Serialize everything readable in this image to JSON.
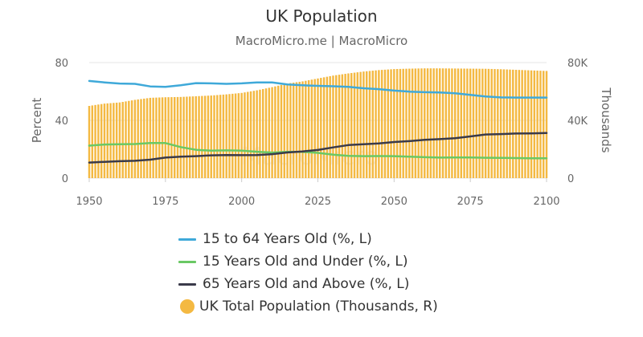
{
  "chart_data": {
    "type": "bar",
    "title": "UK Population",
    "subtitle": "MacroMicro.me | MacroMicro",
    "ylabel_left": "Percent",
    "ylabel_right": "Thousands",
    "xlim": [
      1950,
      2100
    ],
    "x_ticks": [
      "1950",
      "1975",
      "2000",
      "2025",
      "2050",
      "2075",
      "2100"
    ],
    "ylim_left": [
      0,
      80
    ],
    "y_ticks_left": [
      "0",
      "40",
      "80"
    ],
    "ylim_right": [
      0,
      80000
    ],
    "y_ticks_right": [
      "0",
      "40K",
      "80K"
    ],
    "grid": true,
    "legend_position": "bottom",
    "x": [
      1950,
      1955,
      1960,
      1965,
      1970,
      1975,
      1980,
      1985,
      1990,
      1995,
      2000,
      2005,
      2010,
      2015,
      2020,
      2025,
      2030,
      2035,
      2040,
      2045,
      2050,
      2055,
      2060,
      2065,
      2070,
      2075,
      2080,
      2085,
      2090,
      2095,
      2100
    ],
    "series": [
      {
        "name": "15 to 64 Years Old (%, L)",
        "type": "line",
        "axis": "left",
        "color": "#3fa9d9",
        "values": [
          67.3,
          66.3,
          65.5,
          65.3,
          63.5,
          63.2,
          64.3,
          65.8,
          65.6,
          65.3,
          65.6,
          66.3,
          66.3,
          64.9,
          64.3,
          63.9,
          63.6,
          63.2,
          62.2,
          61.6,
          60.6,
          59.9,
          59.5,
          59.3,
          58.8,
          57.6,
          56.5,
          55.9,
          55.8,
          55.8,
          55.8
        ]
      },
      {
        "name": "15 Years Old and Under (%, L)",
        "type": "line",
        "axis": "left",
        "color": "#6ac864",
        "values": [
          22.5,
          23.3,
          23.5,
          23.6,
          24.3,
          24.3,
          21.5,
          19.6,
          19.0,
          19.2,
          19.0,
          18.3,
          17.7,
          18.2,
          18.2,
          17.5,
          16.3,
          15.4,
          15.2,
          15.3,
          15.2,
          14.9,
          14.5,
          14.2,
          14.3,
          14.3,
          14.1,
          14.0,
          13.9,
          13.8,
          13.7
        ]
      },
      {
        "name": "65 Years Old and Above (%, L)",
        "type": "line",
        "axis": "left",
        "color": "#3a3a4a",
        "values": [
          10.8,
          11.3,
          11.7,
          12.0,
          12.8,
          14.2,
          14.9,
          15.2,
          15.8,
          16.0,
          15.9,
          16.0,
          16.6,
          17.8,
          18.5,
          19.5,
          21.3,
          22.9,
          23.5,
          24.0,
          25.0,
          25.6,
          26.5,
          27.0,
          27.6,
          28.9,
          30.2,
          30.5,
          30.9,
          31.0,
          31.2
        ]
      },
      {
        "name": "UK Total Population (Thousands, R)",
        "type": "bar",
        "axis": "right",
        "color": "#f4b942",
        "values": [
          50000,
          51600,
          52400,
          54200,
          55600,
          56000,
          56200,
          56700,
          57200,
          58000,
          59000,
          60800,
          63000,
          65500,
          67000,
          69000,
          71000,
          72500,
          73800,
          74800,
          75500,
          75800,
          76000,
          76000,
          75900,
          75800,
          75700,
          75400,
          75000,
          74600,
          74200
        ]
      }
    ]
  },
  "watermark": "MacroMicro"
}
